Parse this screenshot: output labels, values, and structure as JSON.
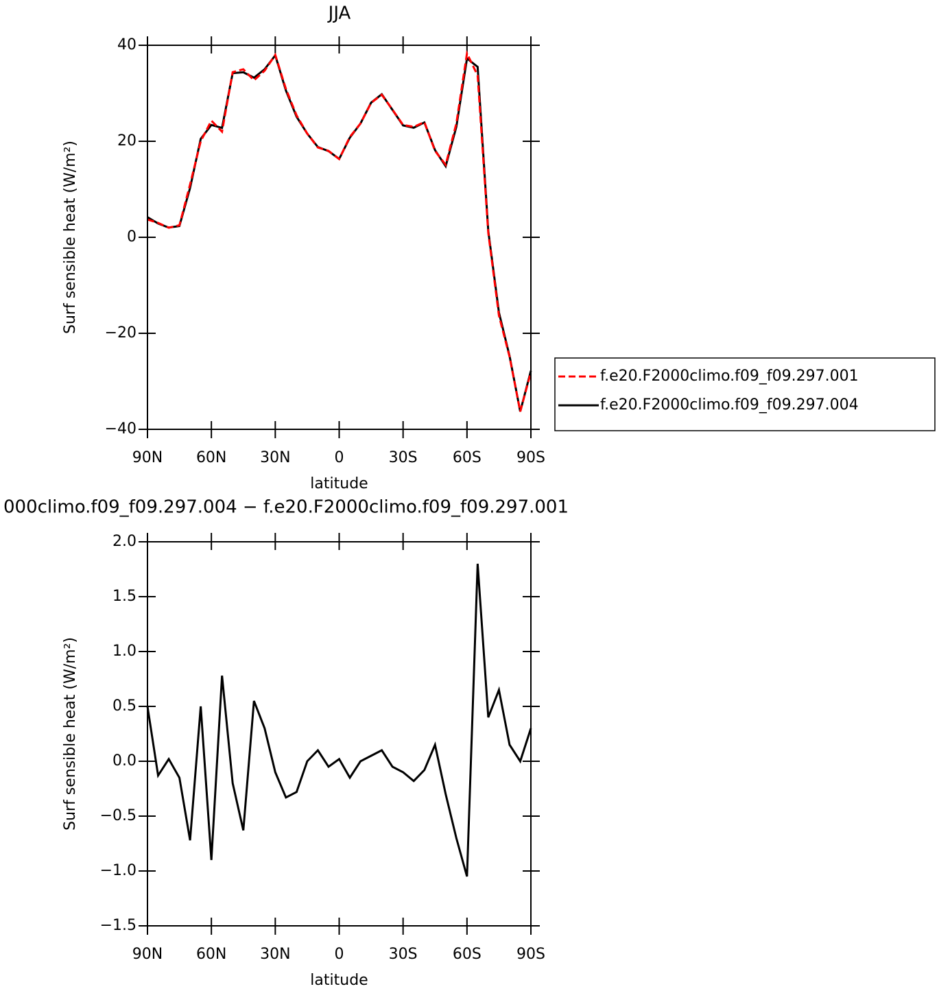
{
  "chart_data": [
    {
      "type": "line",
      "title": "JJA",
      "x_label": "latitude",
      "y_label": "Surf sensible heat (W/m²)",
      "x": [
        90,
        85,
        80,
        75,
        70,
        65,
        60,
        55,
        50,
        45,
        40,
        35,
        30,
        25,
        20,
        15,
        10,
        5,
        0,
        -5,
        -10,
        -15,
        -20,
        -25,
        -30,
        -35,
        -40,
        -45,
        -50,
        -55,
        -60,
        -65,
        -70,
        -75,
        -80,
        -85,
        -90
      ],
      "xlim": [
        90,
        -90
      ],
      "xticks": [
        {
          "value": 90,
          "label": "90N"
        },
        {
          "value": 60,
          "label": "60N"
        },
        {
          "value": 30,
          "label": "30N"
        },
        0,
        {
          "value": -30,
          "label": "30S"
        },
        {
          "value": -60,
          "label": "60S"
        },
        {
          "value": -90,
          "label": "90S"
        }
      ],
      "ylim": [
        -40,
        40
      ],
      "yticks": [
        {
          "value": -40,
          "label": "−40"
        },
        {
          "value": -20,
          "label": "−20"
        },
        0,
        20,
        40
      ],
      "legend": "outside right",
      "series": [
        {
          "name": "f.e20.F2000climo.f09_f09.297.001",
          "color": "#ff0000",
          "dashed": true,
          "values": [
            3.7,
            3.0,
            2.0,
            2.5,
            11,
            20,
            24.3,
            22,
            34.4,
            35,
            32.7,
            34.7,
            38,
            30.9,
            25.4,
            21.6,
            18.7,
            18,
            16.3,
            20.9,
            23.7,
            28,
            29.7,
            26.6,
            23.4,
            23,
            24,
            18,
            15.1,
            23.7,
            38.3,
            33.7,
            0.9,
            -16.3,
            -24.9,
            -36.3,
            -28.1
          ]
        },
        {
          "name": "f.e20.F2000climo.f09_f09.297.004",
          "color": "#000000",
          "dashed": false,
          "values": [
            4.2,
            2.87,
            2.02,
            2.35,
            10.28,
            20.5,
            23.4,
            22.78,
            34.2,
            34.37,
            33.25,
            35.0,
            37.9,
            30.57,
            25.12,
            21.6,
            18.8,
            17.95,
            16.32,
            20.75,
            23.7,
            28.05,
            29.8,
            26.55,
            23.3,
            22.82,
            23.92,
            18.15,
            14.8,
            23.0,
            37.25,
            35.5,
            1.3,
            -15.65,
            -24.75,
            -36.3,
            -27.8
          ]
        }
      ]
    },
    {
      "type": "line",
      "title": "000climo.f09_f09.297.004 − f.e20.F2000climo.f09_f09.297.001",
      "x_label": "latitude",
      "y_label": "Surf sensible heat (W/m²)",
      "x": [
        90,
        85,
        80,
        75,
        70,
        65,
        60,
        55,
        50,
        45,
        40,
        35,
        30,
        25,
        20,
        15,
        10,
        5,
        0,
        -5,
        -10,
        -15,
        -20,
        -25,
        -30,
        -35,
        -40,
        -45,
        -50,
        -55,
        -60,
        -65,
        -70,
        -75,
        -80,
        -85,
        -90
      ],
      "xlim": [
        90,
        -90
      ],
      "xticks": [
        {
          "value": 90,
          "label": "90N"
        },
        {
          "value": 60,
          "label": "60N"
        },
        {
          "value": 30,
          "label": "30N"
        },
        0,
        {
          "value": -30,
          "label": "30S"
        },
        {
          "value": -60,
          "label": "60S"
        },
        {
          "value": -90,
          "label": "90S"
        }
      ],
      "ylim": [
        -1.5,
        2.0
      ],
      "yticks": [
        {
          "value": -1.5,
          "label": "−1.5"
        },
        {
          "value": -1.0,
          "label": "−1.0"
        },
        {
          "value": -0.5,
          "label": "−0.5"
        },
        {
          "value": 0,
          "label": "0.0"
        },
        0.5,
        {
          "value": 1.0,
          "label": "1.0"
        },
        1.5,
        {
          "value": 2.0,
          "label": "2.0"
        }
      ],
      "series": [
        {
          "color": "#000000",
          "dashed": false,
          "values": [
            0.5,
            -0.13,
            0.02,
            -0.15,
            -0.72,
            0.5,
            -0.9,
            0.78,
            -0.2,
            -0.63,
            0.55,
            0.3,
            -0.1,
            -0.33,
            -0.28,
            0,
            0.1,
            -0.05,
            0.02,
            -0.15,
            0,
            0.05,
            0.1,
            -0.05,
            -0.1,
            -0.18,
            -0.08,
            0.15,
            -0.3,
            -0.7,
            -1.05,
            1.8,
            0.4,
            0.65,
            0.15,
            0,
            0.3
          ]
        }
      ]
    }
  ]
}
